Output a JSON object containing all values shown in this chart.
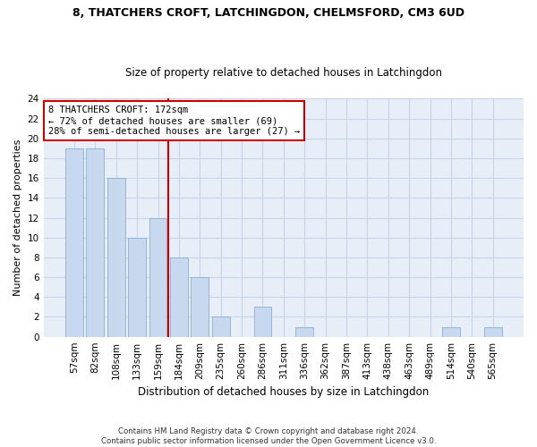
{
  "title_line1": "8, THATCHERS CROFT, LATCHINGDON, CHELMSFORD, CM3 6UD",
  "title_line2": "Size of property relative to detached houses in Latchingdon",
  "xlabel": "Distribution of detached houses by size in Latchingdon",
  "ylabel": "Number of detached properties",
  "footnote": "Contains HM Land Registry data © Crown copyright and database right 2024.\nContains public sector information licensed under the Open Government Licence v3.0.",
  "categories": [
    "57sqm",
    "82sqm",
    "108sqm",
    "133sqm",
    "159sqm",
    "184sqm",
    "209sqm",
    "235sqm",
    "260sqm",
    "286sqm",
    "311sqm",
    "336sqm",
    "362sqm",
    "387sqm",
    "413sqm",
    "438sqm",
    "463sqm",
    "489sqm",
    "514sqm",
    "540sqm",
    "565sqm"
  ],
  "values": [
    19,
    19,
    16,
    10,
    12,
    8,
    6,
    2,
    0,
    3,
    0,
    1,
    0,
    0,
    0,
    0,
    0,
    0,
    1,
    0,
    1
  ],
  "bar_color": "#c8d8ee",
  "bar_edge_color": "#8aafd4",
  "vline_x": 4.5,
  "vline_color": "#cc0000",
  "annotation_text": "8 THATCHERS CROFT: 172sqm\n← 72% of detached houses are smaller (69)\n28% of semi-detached houses are larger (27) →",
  "annotation_box_color": "#cc0000",
  "ylim": [
    0,
    24
  ],
  "yticks": [
    0,
    2,
    4,
    6,
    8,
    10,
    12,
    14,
    16,
    18,
    20,
    22,
    24
  ],
  "grid_color": "#c8d4e8",
  "background_color": "#e8eef8",
  "title1_fontsize": 9.0,
  "title2_fontsize": 8.5,
  "ylabel_fontsize": 8.0,
  "xlabel_fontsize": 8.5,
  "tick_fontsize": 7.5,
  "annot_fontsize": 7.5
}
